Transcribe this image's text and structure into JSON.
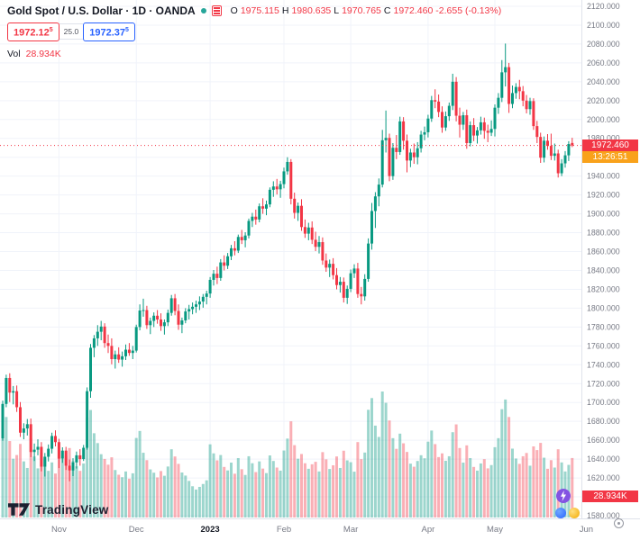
{
  "header": {
    "title": "Gold Spot / U.S. Dollar · 1D · OANDA",
    "ohlc": {
      "o_label": "O",
      "o": "1975.115",
      "h_label": "H",
      "h": "1980.635",
      "l_label": "L",
      "l": "1970.765",
      "c_label": "C",
      "c": "1972.460",
      "change": "-2.655 (-0.13%)"
    }
  },
  "quote_panel": {
    "sell": {
      "main": "1972.12",
      "sup": "5"
    },
    "spread": "25.0",
    "buy": {
      "main": "1972.37",
      "sup": "5"
    }
  },
  "volume_row": {
    "label": "Vol",
    "value": "28.934K"
  },
  "price_axis": {
    "current_price": "1972.460",
    "countdown": "13:26:51",
    "volume_badge": "28.934K"
  },
  "footer": {
    "logo_text": "TradingView"
  },
  "chart_data": {
    "type": "candlestick",
    "title": "Gold Spot / U.S. Dollar",
    "interval": "1D",
    "exchange": "OANDA",
    "ylim": [
      1580,
      2120
    ],
    "y_step": 20,
    "last_close": 1972.46,
    "volume_pane_height": 140,
    "legend_note": "candles format: [open, high, low, close, volume_K]",
    "colors": {
      "up": "#089981",
      "down": "#f23645",
      "vol_up": "rgba(8,153,129,0.4)",
      "vol_down": "rgba(242,54,69,0.4)",
      "grid": "#f0f3fa",
      "axis_text": "#787b86",
      "bold_text": "#131722",
      "buy_blue": "#2962ff",
      "countdown_bg": "#f9a21b",
      "axis_border": "#e0e3eb"
    },
    "x_ticks": [
      {
        "label": "Nov",
        "i": 16
      },
      {
        "label": "Dec",
        "i": 38
      },
      {
        "label": "2023",
        "i": 59,
        "bold": true
      },
      {
        "label": "Feb",
        "i": 80
      },
      {
        "label": "Mar",
        "i": 99
      },
      {
        "label": "Apr",
        "i": 121
      },
      {
        "label": "May",
        "i": 140
      },
      {
        "label": "Jun",
        "i": 166
      }
    ],
    "candles": [
      [
        1662,
        1702,
        1659.5,
        1698.5,
        44.3
      ],
      [
        1698.5,
        1729.5,
        1695,
        1726,
        48.9
      ],
      [
        1726,
        1731,
        1700.5,
        1710.5,
        37.2
      ],
      [
        1710.5,
        1717.5,
        1698,
        1712,
        28.6
      ],
      [
        1712,
        1718,
        1690,
        1695,
        30.4
      ],
      [
        1695,
        1700.5,
        1663.5,
        1668,
        35.8
      ],
      [
        1668,
        1678,
        1661,
        1672.5,
        27.3
      ],
      [
        1672.5,
        1682.5,
        1665,
        1677,
        24.1
      ],
      [
        1677,
        1683,
        1642,
        1647.5,
        38.5
      ],
      [
        1647.5,
        1656.5,
        1638,
        1650,
        29.7
      ],
      [
        1650,
        1661,
        1644,
        1653,
        23.9
      ],
      [
        1653,
        1658,
        1627,
        1632,
        31.6
      ],
      [
        1632,
        1646.5,
        1621.5,
        1642.5,
        28.2
      ],
      [
        1642.5,
        1655.5,
        1637.5,
        1651,
        22.7
      ],
      [
        1651,
        1668,
        1646,
        1664.5,
        26.8
      ],
      [
        1664.5,
        1670.5,
        1653.5,
        1658,
        21.4
      ],
      [
        1658,
        1661.5,
        1630.5,
        1640.5,
        32.9
      ],
      [
        1640.5,
        1652.5,
        1636,
        1649,
        28.5
      ],
      [
        1649,
        1653,
        1628.5,
        1633,
        30.1
      ],
      [
        1633,
        1639.5,
        1616.5,
        1628,
        33.8
      ],
      [
        1628,
        1641,
        1622,
        1636.5,
        27.4
      ],
      [
        1636.5,
        1648,
        1630,
        1644,
        24.9
      ],
      [
        1644,
        1650.5,
        1633,
        1640,
        22.7
      ],
      [
        1640,
        1655,
        1638,
        1652,
        26.3
      ],
      [
        1652,
        1716,
        1650,
        1712,
        48.6
      ],
      [
        1712,
        1762,
        1705,
        1758,
        52.3
      ],
      [
        1758,
        1771.5,
        1748,
        1768,
        41.0
      ],
      [
        1768,
        1782,
        1760,
        1775,
        36.2
      ],
      [
        1775,
        1786.5,
        1766,
        1780.5,
        30.8
      ],
      [
        1780.5,
        1784,
        1758,
        1763,
        28.5
      ],
      [
        1763,
        1772,
        1752.5,
        1760,
        25.7
      ],
      [
        1760,
        1768,
        1740.5,
        1746,
        29.3
      ],
      [
        1746,
        1755,
        1736,
        1751,
        23.1
      ],
      [
        1751,
        1758.5,
        1742,
        1745.5,
        20.8
      ],
      [
        1745.5,
        1754,
        1738,
        1749,
        19.6
      ],
      [
        1749,
        1761.5,
        1745,
        1756,
        22.4
      ],
      [
        1756,
        1763,
        1749.5,
        1752.5,
        18.9
      ],
      [
        1752.5,
        1760,
        1746,
        1755,
        21.5
      ],
      [
        1755,
        1782.5,
        1753,
        1780,
        38.7
      ],
      [
        1780,
        1804,
        1776.5,
        1797.5,
        42.1
      ],
      [
        1797.5,
        1810,
        1791,
        1798,
        31.5
      ],
      [
        1798,
        1802.5,
        1778,
        1782,
        27.9
      ],
      [
        1782,
        1790,
        1772.5,
        1786.5,
        23.4
      ],
      [
        1786.5,
        1795.5,
        1780,
        1792,
        21.8
      ],
      [
        1792,
        1798,
        1783.5,
        1788,
        19.5
      ],
      [
        1788,
        1794.5,
        1776,
        1781,
        22.6
      ],
      [
        1781,
        1788,
        1772,
        1785,
        20.3
      ],
      [
        1785,
        1798.5,
        1781,
        1795,
        24.8
      ],
      [
        1795,
        1814,
        1792,
        1810.5,
        33.2
      ],
      [
        1810.5,
        1815,
        1792.5,
        1797,
        29.7
      ],
      [
        1797,
        1804,
        1777,
        1782.5,
        26.1
      ],
      [
        1782.5,
        1790,
        1773.5,
        1787,
        21.9
      ],
      [
        1787,
        1800,
        1784,
        1796.5,
        20.4
      ],
      [
        1796.5,
        1803.5,
        1788,
        1799,
        17.8
      ],
      [
        1799,
        1806,
        1793.5,
        1801.5,
        15.2
      ],
      [
        1801.5,
        1808,
        1795,
        1804,
        13.6
      ],
      [
        1804,
        1812.5,
        1798,
        1807,
        14.9
      ],
      [
        1807,
        1815,
        1800.5,
        1812,
        16.3
      ],
      [
        1812,
        1818.5,
        1804,
        1815.5,
        18.1
      ],
      [
        1815.5,
        1833,
        1811,
        1830,
        35.6
      ],
      [
        1830,
        1840.5,
        1824,
        1836.5,
        31.2
      ],
      [
        1836.5,
        1844,
        1825.5,
        1832,
        27.8
      ],
      [
        1832,
        1852,
        1829,
        1848.5,
        30.4
      ],
      [
        1848.5,
        1856,
        1840,
        1845,
        24.6
      ],
      [
        1845,
        1858.5,
        1841.5,
        1855,
        22.9
      ],
      [
        1855,
        1867,
        1851,
        1863.5,
        26.7
      ],
      [
        1863.5,
        1871,
        1856,
        1861,
        21.3
      ],
      [
        1861,
        1878,
        1858.5,
        1875.5,
        28.9
      ],
      [
        1875.5,
        1883,
        1868,
        1872,
        23.5
      ],
      [
        1872,
        1880.5,
        1864.5,
        1877,
        20.7
      ],
      [
        1877,
        1895,
        1874,
        1892.5,
        29.8
      ],
      [
        1892.5,
        1901,
        1886,
        1897,
        26.4
      ],
      [
        1897,
        1904.5,
        1888.5,
        1894,
        22.1
      ],
      [
        1894,
        1911,
        1891,
        1908,
        27.3
      ],
      [
        1908,
        1916.5,
        1900,
        1905.5,
        23.8
      ],
      [
        1905.5,
        1914,
        1898.5,
        1910,
        21.6
      ],
      [
        1910,
        1928,
        1907,
        1925.5,
        30.2
      ],
      [
        1925.5,
        1934.5,
        1918,
        1929,
        27.5
      ],
      [
        1929,
        1937,
        1920.5,
        1926,
        24.3
      ],
      [
        1926,
        1935,
        1917,
        1931.5,
        22.8
      ],
      [
        1931.5,
        1949,
        1927,
        1945,
        32.6
      ],
      [
        1945,
        1960,
        1941.5,
        1955,
        38.4
      ],
      [
        1955,
        1958,
        1910,
        1916,
        46.8
      ],
      [
        1916,
        1922.5,
        1895,
        1901,
        35.2
      ],
      [
        1901,
        1912,
        1892.5,
        1908.5,
        28.6
      ],
      [
        1908.5,
        1915.5,
        1882,
        1886,
        30.9
      ],
      [
        1886,
        1894,
        1874.5,
        1879,
        26.4
      ],
      [
        1879,
        1890.5,
        1872,
        1885.5,
        23.7
      ],
      [
        1885.5,
        1892,
        1868,
        1872.5,
        25.9
      ],
      [
        1872.5,
        1881,
        1860.5,
        1865,
        27.1
      ],
      [
        1865,
        1876.5,
        1858,
        1870,
        22.4
      ],
      [
        1870,
        1875,
        1846,
        1850.5,
        31.8
      ],
      [
        1850.5,
        1858,
        1838.5,
        1843,
        28.3
      ],
      [
        1843,
        1851.5,
        1833,
        1847,
        23.6
      ],
      [
        1847,
        1853,
        1830.5,
        1835,
        25.4
      ],
      [
        1835,
        1842.5,
        1820,
        1824.5,
        29.7
      ],
      [
        1824.5,
        1833,
        1816.5,
        1828,
        24.1
      ],
      [
        1828,
        1832.5,
        1806,
        1811,
        32.5
      ],
      [
        1811,
        1824,
        1804.5,
        1820.5,
        27.8
      ],
      [
        1820.5,
        1841,
        1817,
        1837,
        26.9
      ],
      [
        1837,
        1846.5,
        1832,
        1842,
        22.3
      ],
      [
        1842,
        1848,
        1811,
        1815,
        36.7
      ],
      [
        1815,
        1822.5,
        1804,
        1812.5,
        28.4
      ],
      [
        1812.5,
        1836,
        1808,
        1831,
        31.6
      ],
      [
        1831,
        1874,
        1828,
        1868.5,
        52.4
      ],
      [
        1868.5,
        1911.5,
        1862,
        1903,
        58.1
      ],
      [
        1903,
        1923,
        1885,
        1918.5,
        44.7
      ],
      [
        1918.5,
        1937.5,
        1908,
        1931,
        39.2
      ],
      [
        1931,
        1989,
        1928,
        1978,
        61.3
      ],
      [
        1978,
        2009.5,
        1965,
        1980.5,
        55.8
      ],
      [
        1980.5,
        1985,
        1934.5,
        1940,
        47.2
      ],
      [
        1940,
        1975,
        1936,
        1970,
        38.6
      ],
      [
        1970,
        1983.5,
        1958,
        1965.5,
        33.4
      ],
      [
        1965.5,
        2003,
        1962.5,
        1998,
        40.8
      ],
      [
        1998,
        2002.5,
        1968,
        1977.5,
        36.1
      ],
      [
        1977.5,
        1984,
        1944,
        1956.5,
        31.9
      ],
      [
        1956.5,
        1969,
        1949.5,
        1965,
        26.2
      ],
      [
        1965,
        1974.5,
        1953,
        1960,
        24.7
      ],
      [
        1960,
        1976,
        1952.5,
        1969.5,
        27.5
      ],
      [
        1969.5,
        1988,
        1965,
        1984,
        30.3
      ],
      [
        1984,
        1992.5,
        1978,
        1986.5,
        28.8
      ],
      [
        1986.5,
        2005,
        1981,
        2001,
        36.9
      ],
      [
        2001,
        2025,
        1997.5,
        2020.5,
        42.3
      ],
      [
        2020.5,
        2032,
        2012,
        2019,
        35.7
      ],
      [
        2019,
        2026.5,
        2002.5,
        2008,
        29.4
      ],
      [
        2008,
        2014,
        1986,
        1991.5,
        31.2
      ],
      [
        1991.5,
        2008.5,
        1988,
        2003.5,
        27.6
      ],
      [
        2003.5,
        2018,
        1998.5,
        2014.5,
        29.8
      ],
      [
        2014.5,
        2048.5,
        2010,
        2040,
        41.5
      ],
      [
        2040,
        2045,
        1998,
        2004,
        45.3
      ],
      [
        2004,
        2012.5,
        1981,
        1994.5,
        33.8
      ],
      [
        1994.5,
        2008,
        1989,
        2004.5,
        26.7
      ],
      [
        2004.5,
        2010.5,
        1969,
        1975,
        35.1
      ],
      [
        1975,
        1998,
        1971.5,
        1994,
        28.9
      ],
      [
        1994,
        2001.5,
        1977,
        1983,
        24.6
      ],
      [
        1983,
        1992,
        1974.5,
        1988.5,
        22.8
      ],
      [
        1988.5,
        2003,
        1984,
        1997,
        26.3
      ],
      [
        1997,
        2002,
        1979.5,
        1988,
        28.4
      ],
      [
        1988,
        1994.5,
        1976,
        1986,
        23.9
      ],
      [
        1986,
        1999,
        1982.5,
        1990,
        25.5
      ],
      [
        1990,
        2016,
        1982,
        2012.5,
        34.2
      ],
      [
        2012.5,
        2028,
        2006,
        2023,
        38.6
      ],
      [
        2023,
        2063,
        2018.5,
        2050,
        52.7
      ],
      [
        2050,
        2080.5,
        2035,
        2055.5,
        57.4
      ],
      [
        2055.5,
        2060,
        2007,
        2016.5,
        48.9
      ],
      [
        2016.5,
        2036,
        2012,
        2028,
        33.5
      ],
      [
        2028,
        2038.5,
        2022,
        2034.5,
        28.7
      ],
      [
        2034.5,
        2042,
        2021.5,
        2030,
        26.1
      ],
      [
        2030,
        2035.5,
        2014,
        2020,
        29.8
      ],
      [
        2020,
        2026,
        2006.5,
        2011,
        31.4
      ],
      [
        2011,
        2023,
        2005,
        2019.5,
        25.2
      ],
      [
        2019.5,
        2022.5,
        1989,
        1993,
        34.6
      ],
      [
        1993,
        1998.5,
        1975,
        1981.5,
        32.8
      ],
      [
        1981.5,
        1986,
        1954,
        1959.5,
        36.3
      ],
      [
        1959.5,
        1982,
        1954.5,
        1977.5,
        29.1
      ],
      [
        1977.5,
        1984.5,
        1968,
        1972,
        23.7
      ],
      [
        1972,
        1985,
        1957,
        1961.5,
        27.9
      ],
      [
        1961.5,
        1974.5,
        1956.5,
        1964,
        24.3
      ],
      [
        1964,
        1968,
        1938.5,
        1943,
        33.2
      ],
      [
        1943,
        1958,
        1940,
        1953.5,
        26.8
      ],
      [
        1953.5,
        1966.5,
        1949,
        1962,
        22.4
      ],
      [
        1962,
        1977,
        1956,
        1974,
        25.6
      ],
      [
        1975.115,
        1980.635,
        1970.765,
        1972.46,
        28.934
      ]
    ]
  }
}
